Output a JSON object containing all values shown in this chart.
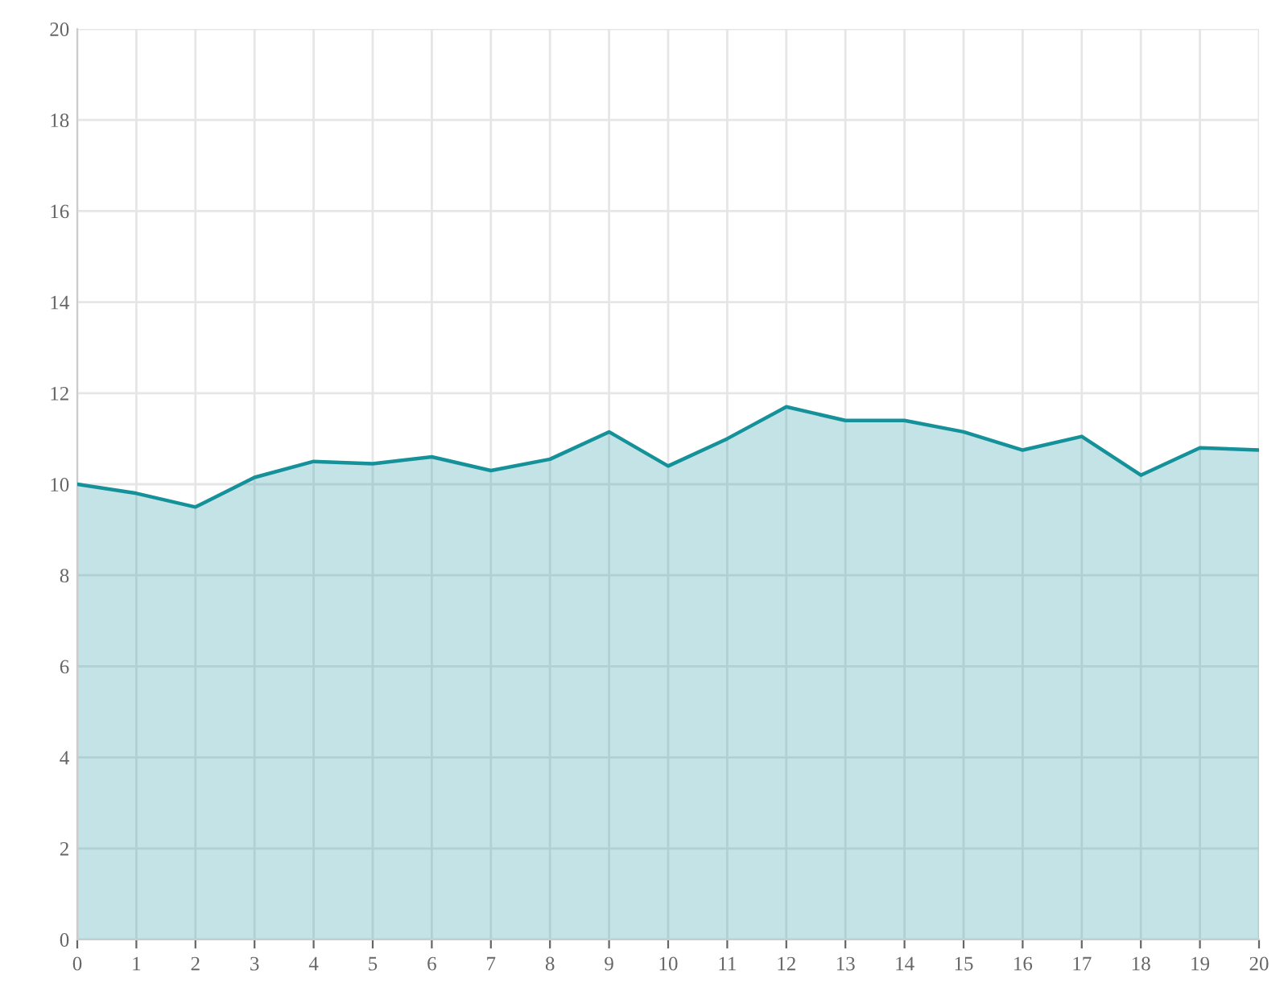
{
  "chart_data": {
    "type": "area",
    "x": [
      0,
      1,
      2,
      3,
      4,
      5,
      6,
      7,
      8,
      9,
      10,
      11,
      12,
      13,
      14,
      15,
      16,
      17,
      18,
      19,
      20
    ],
    "series": [
      {
        "color": "#15919a",
        "values": [
          10.0,
          9.8,
          9.5,
          10.15,
          10.5,
          10.45,
          10.6,
          10.3,
          10.55,
          11.15,
          10.4,
          11.0,
          11.7,
          11.4,
          11.4,
          11.15,
          10.75,
          11.05,
          10.2,
          10.8,
          10.75
        ]
      }
    ],
    "xlim": [
      0,
      20
    ],
    "xticks": [
      0,
      1,
      2,
      3,
      4,
      5,
      6,
      7,
      8,
      9,
      10,
      11,
      12,
      13,
      14,
      15,
      16,
      17,
      18,
      19,
      20
    ],
    "ylim": [
      0,
      20
    ],
    "yticks": [
      0,
      2,
      4,
      6,
      8,
      10,
      12,
      14,
      16,
      18,
      20
    ],
    "grid": true
  }
}
